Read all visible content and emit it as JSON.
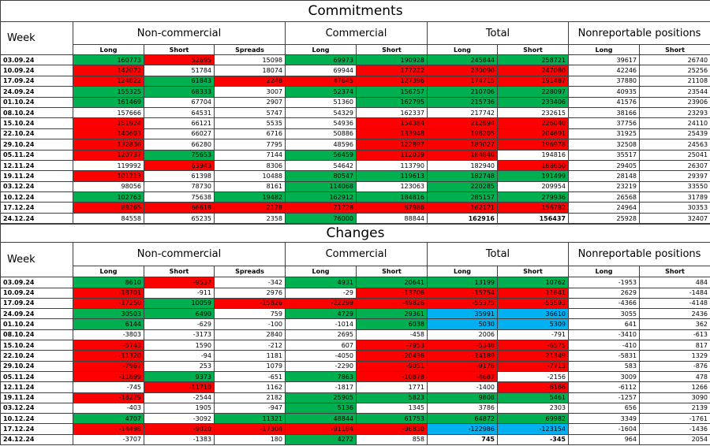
{
  "sections": [
    {
      "title": "Commitments",
      "week_header": "Week",
      "groups": [
        "Non-commercial",
        "Commercial",
        "Total",
        "Nonreportable positions"
      ],
      "subheaders": [
        "Long",
        "Short",
        "Spreads",
        "Long",
        "Short",
        "Long",
        "Short",
        "Long",
        "Short"
      ],
      "rows": [
        {
          "week": "03.09.24",
          "values": [
            160773,
            52695,
            15098,
            69973,
            190928,
            245844,
            258721,
            39617,
            26740
          ],
          "highlight": [
            "#00b050",
            "#ff0000",
            null,
            "#00b050",
            "#00b050",
            "#00b050",
            "#00b050",
            null,
            null
          ]
        },
        {
          "week": "10.09.24",
          "values": [
            142072,
            51784,
            18074,
            69944,
            177222,
            230090,
            247080,
            42246,
            25256
          ],
          "highlight": [
            "#ff0000",
            null,
            null,
            null,
            "#ff0000",
            "#ff0000",
            "#ff0000",
            null,
            null
          ]
        },
        {
          "week": "17.09.24",
          "values": [
            124822,
            61843,
            2248,
            47645,
            127396,
            174715,
            191487,
            37880,
            21108
          ],
          "highlight": [
            "#ff0000",
            "#00b050",
            "#ff0000",
            "#ff0000",
            "#ff0000",
            "#ff0000",
            "#ff0000",
            null,
            null
          ]
        },
        {
          "week": "24.09.24",
          "values": [
            155325,
            68333,
            3007,
            52374,
            156757,
            210706,
            228097,
            40935,
            23544
          ],
          "highlight": [
            "#00b050",
            "#00b050",
            null,
            "#00b050",
            "#00b050",
            "#00b050",
            "#00b050",
            null,
            null
          ]
        },
        {
          "week": "01.10.24",
          "values": [
            161469,
            67704,
            2907,
            51360,
            162795,
            215736,
            233406,
            41576,
            23906
          ],
          "highlight": [
            "#00b050",
            null,
            null,
            null,
            "#00b050",
            "#00b050",
            "#00b050",
            null,
            null
          ]
        },
        {
          "week": "08.10.24",
          "values": [
            157666,
            64531,
            5747,
            54329,
            162337,
            217742,
            232615,
            38166,
            23293
          ],
          "highlight": [
            null,
            null,
            null,
            null,
            null,
            null,
            null,
            null,
            null
          ]
        },
        {
          "week": "15.10.24",
          "values": [
            151924,
            66121,
            5535,
            54936,
            154384,
            212894,
            226040,
            37756,
            24110
          ],
          "highlight": [
            "#ff0000",
            null,
            null,
            null,
            "#ff0000",
            "#ff0000",
            "#ff0000",
            null,
            null
          ]
        },
        {
          "week": "22.10.24",
          "values": [
            140603,
            66027,
            6716,
            50886,
            133948,
            198205,
            204691,
            31925,
            25439
          ],
          "highlight": [
            "#ff0000",
            null,
            null,
            null,
            "#ff0000",
            "#ff0000",
            "#ff0000",
            null,
            null
          ]
        },
        {
          "week": "29.10.24",
          "values": [
            132836,
            66280,
            7795,
            48596,
            122897,
            189027,
            196978,
            32508,
            24563
          ],
          "highlight": [
            "#ff0000",
            null,
            null,
            null,
            "#ff0000",
            "#ff0000",
            "#ff0000",
            null,
            null
          ]
        },
        {
          "week": "05.11.24",
          "values": [
            120737,
            75653,
            7144,
            56459,
            112039,
            184840,
            194816,
            35517,
            25041
          ],
          "highlight": [
            "#ff0000",
            "#00b050",
            null,
            "#00b050",
            "#ff0000",
            "#ff0000",
            null,
            null,
            null
          ]
        },
        {
          "week": "12.11.24",
          "values": [
            119992,
            63943,
            8306,
            54642,
            113790,
            182940,
            188650,
            29405,
            26307
          ],
          "highlight": [
            null,
            "#ff0000",
            null,
            null,
            null,
            null,
            "#ff0000",
            null,
            null
          ]
        },
        {
          "week": "19.11.24",
          "values": [
            101713,
            61398,
            10488,
            80547,
            119613,
            182748,
            191499,
            28148,
            29397
          ],
          "highlight": [
            "#ff0000",
            null,
            null,
            "#00b050",
            "#00b050",
            "#00b050",
            "#00b050",
            null,
            null
          ]
        },
        {
          "week": "03.12.24",
          "values": [
            98056,
            78730,
            8161,
            114068,
            123063,
            220285,
            209954,
            23219,
            33550
          ],
          "highlight": [
            null,
            null,
            null,
            "#00b050",
            null,
            "#00b050",
            null,
            null,
            null
          ]
        },
        {
          "week": "10.12.24",
          "values": [
            102763,
            75638,
            19482,
            162912,
            184816,
            285157,
            279936,
            26568,
            31789
          ],
          "highlight": [
            "#00b050",
            null,
            "#00b050",
            "#00b050",
            "#00b050",
            "#00b050",
            "#00b050",
            null,
            null
          ]
        },
        {
          "week": "17.12.24",
          "values": [
            88265,
            66618,
            2178,
            71728,
            87986,
            162171,
            156782,
            24964,
            30353
          ],
          "highlight": [
            "#ff0000",
            "#ff0000",
            "#ff0000",
            "#ff0000",
            "#ff0000",
            "#ff0000",
            "#ff0000",
            null,
            null
          ]
        },
        {
          "week": "24.12.24",
          "values": [
            84558,
            65235,
            2358,
            76000,
            88844,
            162916,
            156437,
            25928,
            32407
          ],
          "highlight": [
            null,
            null,
            null,
            "#00b050",
            null,
            null,
            null,
            null,
            null
          ],
          "bold": [
            false,
            false,
            false,
            false,
            false,
            true,
            true,
            false,
            false
          ]
        }
      ]
    },
    {
      "title": "Changes",
      "week_header": "Week",
      "groups": [
        "Non-commercial",
        "Commercial",
        "Total",
        "Nonreportable positions"
      ],
      "subheaders": [
        "Long",
        "Short",
        "Spreads",
        "Long",
        "Short",
        "Long",
        "Short",
        "Long",
        "Short"
      ],
      "rows": [
        {
          "week": "03.09.24",
          "values": [
            8610,
            -9537,
            -342,
            4931,
            20641,
            13199,
            10762,
            -1953,
            484
          ],
          "highlight": [
            "#00b050",
            "#ff0000",
            null,
            "#00b050",
            "#00b050",
            "#00b050",
            "#00b050",
            null,
            null
          ]
        },
        {
          "week": "10.09.24",
          "values": [
            -18701,
            -911,
            2976,
            -29,
            -13706,
            -15754,
            -11641,
            2629,
            -1484
          ],
          "highlight": [
            "#ff0000",
            null,
            null,
            null,
            "#ff0000",
            "#ff0000",
            "#ff0000",
            null,
            null
          ]
        },
        {
          "week": "17.09.24",
          "values": [
            -17250,
            10059,
            -15826,
            -22299,
            -49826,
            -55375,
            -55593,
            -4366,
            -4148
          ],
          "highlight": [
            "#ff0000",
            "#00b050",
            "#ff0000",
            "#ff0000",
            "#ff0000",
            "#ff0000",
            "#ff0000",
            null,
            null
          ]
        },
        {
          "week": "24.09.24",
          "values": [
            30503,
            6490,
            759,
            4729,
            29361,
            35991,
            36610,
            3055,
            2436
          ],
          "highlight": [
            "#00b050",
            "#00b050",
            null,
            "#00b050",
            "#00b050",
            "#00b0f0",
            "#00b0f0",
            null,
            null
          ]
        },
        {
          "week": "01.10.24",
          "values": [
            6144,
            -629,
            -100,
            -1014,
            6038,
            5030,
            5309,
            641,
            362
          ],
          "highlight": [
            "#00b050",
            null,
            null,
            null,
            "#00b050",
            "#00b0f0",
            "#00b0f0",
            null,
            null
          ]
        },
        {
          "week": "08.10.24",
          "values": [
            -3803,
            -3173,
            2840,
            2695,
            -458,
            2006,
            -791,
            -3410,
            -613
          ],
          "highlight": [
            null,
            null,
            null,
            null,
            null,
            null,
            null,
            null,
            null
          ]
        },
        {
          "week": "15.10.24",
          "values": [
            -5743,
            1590,
            -212,
            607,
            -7953,
            -5348,
            -6575,
            -410,
            817
          ],
          "highlight": [
            "#ff0000",
            null,
            null,
            null,
            "#ff0000",
            "#ff0000",
            "#ff0000",
            null,
            null
          ]
        },
        {
          "week": "22.10.24",
          "values": [
            -11320,
            -94,
            1181,
            -4050,
            -20436,
            -14189,
            -21349,
            -5831,
            1329
          ],
          "highlight": [
            "#ff0000",
            null,
            null,
            null,
            "#ff0000",
            "#ff0000",
            "#ff0000",
            null,
            null
          ]
        },
        {
          "week": "29.10.24",
          "values": [
            -7967,
            253,
            1079,
            -2290,
            -9051,
            -9178,
            -7713,
            583,
            -876
          ],
          "highlight": [
            "#ff0000",
            null,
            null,
            null,
            "#ff0000",
            "#ff0000",
            "#ff0000",
            null,
            null
          ]
        },
        {
          "week": "05.11.24",
          "values": [
            -11899,
            9373,
            -651,
            7863,
            -10878,
            -4687,
            -2156,
            3009,
            478
          ],
          "highlight": [
            "#ff0000",
            "#00b050",
            null,
            "#00b050",
            "#ff0000",
            "#ff0000",
            null,
            null,
            null
          ]
        },
        {
          "week": "12.11.24",
          "values": [
            -745,
            -11710,
            1162,
            -1817,
            1771,
            -1400,
            -6166,
            -6112,
            1266
          ],
          "highlight": [
            null,
            "#ff0000",
            null,
            null,
            null,
            null,
            "#ff0000",
            null,
            null
          ]
        },
        {
          "week": "19.11.24",
          "values": [
            -18279,
            -2544,
            2182,
            25905,
            5823,
            9808,
            5461,
            -1257,
            3090
          ],
          "highlight": [
            "#ff0000",
            null,
            null,
            "#00b050",
            "#00b050",
            "#00b050",
            "#00b050",
            null,
            null
          ]
        },
        {
          "week": "03.12.24",
          "values": [
            -403,
            1905,
            -947,
            5136,
            1345,
            3786,
            2303,
            656,
            2139
          ],
          "highlight": [
            null,
            null,
            null,
            "#00b050",
            null,
            null,
            null,
            null,
            null
          ]
        },
        {
          "week": "10.12.24",
          "values": [
            4707,
            -3092,
            11321,
            48844,
            61753,
            64872,
            69982,
            3349,
            -1761
          ],
          "highlight": [
            "#00b050",
            null,
            "#00b050",
            "#00b050",
            "#00b050",
            "#00b050",
            "#00b050",
            null,
            null
          ]
        },
        {
          "week": "17.12.24",
          "values": [
            -14498,
            -9020,
            -17304,
            -91184,
            -96830,
            -122986,
            -123154,
            -1604,
            -1436
          ],
          "highlight": [
            "#ff0000",
            "#ff0000",
            "#ff0000",
            "#ff0000",
            "#ff0000",
            "#00b0f0",
            "#00b0f0",
            null,
            null
          ]
        },
        {
          "week": "24.12.24",
          "values": [
            -3707,
            -1383,
            180,
            4272,
            858,
            745,
            -345,
            964,
            2054
          ],
          "highlight": [
            null,
            null,
            null,
            "#00b050",
            null,
            null,
            null,
            null,
            null
          ],
          "bold": [
            false,
            false,
            false,
            false,
            false,
            true,
            true,
            false,
            false
          ]
        }
      ]
    }
  ]
}
